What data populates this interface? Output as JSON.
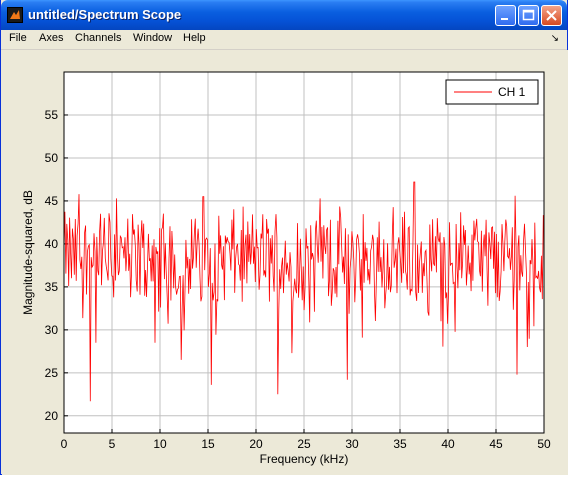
{
  "window": {
    "title": "untitled/Spectrum Scope"
  },
  "menu": [
    {
      "label": "File"
    },
    {
      "label": "Axes"
    },
    {
      "label": "Channels"
    },
    {
      "label": "Window"
    },
    {
      "label": "Help"
    }
  ],
  "colors": {
    "trace": "#ff0000",
    "titlebar": "#0552d6",
    "plot_bg": "#ffffff",
    "frame_bg": "#ece9d8"
  },
  "chart_data": {
    "type": "line",
    "xlabel": "Frequency (kHz)",
    "ylabel": "Magnitude-squared, dB",
    "xlim": [
      0,
      50
    ],
    "ylim": [
      18,
      60
    ],
    "xticks": [
      0,
      5,
      10,
      15,
      20,
      25,
      30,
      35,
      40,
      45,
      50
    ],
    "yticks": [
      20,
      25,
      30,
      35,
      40,
      45,
      50,
      55
    ],
    "grid": true,
    "legend_position": "top-right",
    "series": [
      {
        "name": "CH 1",
        "color": "#ff0000",
        "baseline_db": 38.5,
        "x_step_khz": 0.0977,
        "notable_dips": [
          [
            2.7,
            21.7
          ],
          [
            3.3,
            28.5
          ],
          [
            5.5,
            27.5
          ],
          [
            9.5,
            28.5
          ],
          [
            12.2,
            26.5
          ],
          [
            15.3,
            23.6
          ],
          [
            22.3,
            22.5
          ],
          [
            29.5,
            24.2
          ],
          [
            47.2,
            24.8
          ],
          [
            48.3,
            28.0
          ]
        ],
        "notable_peaks": [
          [
            1.6,
            45.8
          ],
          [
            5.5,
            45.3
          ],
          [
            14.5,
            45.5
          ],
          [
            26.7,
            45.3
          ],
          [
            36.5,
            47.2
          ],
          [
            47.0,
            45.6
          ],
          [
            50.0,
            44.5
          ]
        ]
      }
    ]
  }
}
